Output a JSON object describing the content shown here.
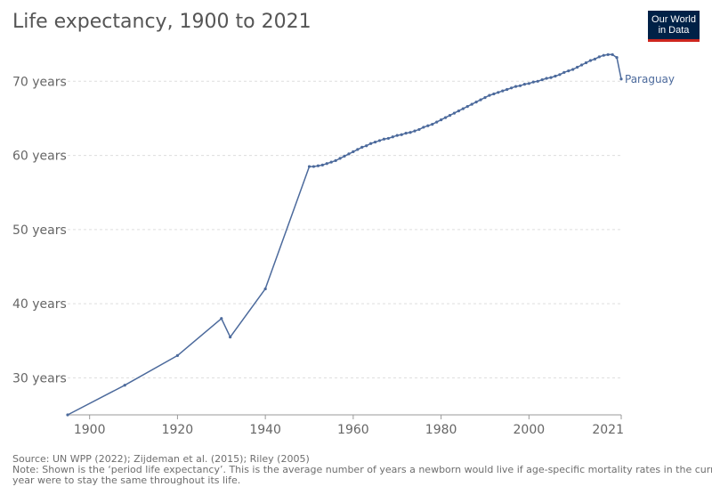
{
  "header": {
    "title": "Life expectancy, 1900 to 2021",
    "logo_line1": "Our World",
    "logo_line2": "in Data"
  },
  "footer": {
    "source": "Source: UN WPP (2022); Zijdeman et al. (2015); Riley (2005)",
    "note_line1": "Note: Shown is the ‘period life expectancy’. This is the average number of years a newborn would live if age-specific mortality rates in the current",
    "note_line2": "year were to stay the same throughout its life."
  },
  "colors": {
    "series": "#4c6a9c",
    "grid": "#dddddd",
    "axis_text": "#666666",
    "logo_bg": "#002147",
    "logo_accent": "#ce261e"
  },
  "chart_data": {
    "type": "line",
    "title": "Life expectancy, 1900 to 2021",
    "xlabel": "",
    "ylabel": "",
    "xlim": [
      1895,
      2021
    ],
    "ylim": [
      25,
      74
    ],
    "x_ticks": [
      1900,
      1920,
      1940,
      1960,
      1980,
      2000,
      2021
    ],
    "y_ticks": [
      30,
      40,
      50,
      60,
      70
    ],
    "y_tick_labels": [
      "30 years",
      "40 years",
      "50 years",
      "60 years",
      "70 years"
    ],
    "grid": true,
    "series": [
      {
        "name": "Paraguay",
        "color": "#4c6a9c",
        "points": [
          [
            1895,
            25.0
          ],
          [
            1908,
            29.0
          ],
          [
            1920,
            33.0
          ],
          [
            1930,
            38.0
          ],
          [
            1932,
            35.5
          ],
          [
            1940,
            42.0
          ],
          [
            1950,
            58.5
          ],
          [
            1951,
            58.5
          ],
          [
            1952,
            58.6
          ],
          [
            1953,
            58.7
          ],
          [
            1954,
            58.9
          ],
          [
            1955,
            59.1
          ],
          [
            1956,
            59.3
          ],
          [
            1957,
            59.6
          ],
          [
            1958,
            59.9
          ],
          [
            1959,
            60.2
          ],
          [
            1960,
            60.5
          ],
          [
            1961,
            60.8
          ],
          [
            1962,
            61.1
          ],
          [
            1963,
            61.3
          ],
          [
            1964,
            61.6
          ],
          [
            1965,
            61.8
          ],
          [
            1966,
            62.0
          ],
          [
            1967,
            62.2
          ],
          [
            1968,
            62.3
          ],
          [
            1969,
            62.5
          ],
          [
            1970,
            62.7
          ],
          [
            1971,
            62.8
          ],
          [
            1972,
            63.0
          ],
          [
            1973,
            63.1
          ],
          [
            1974,
            63.3
          ],
          [
            1975,
            63.5
          ],
          [
            1976,
            63.8
          ],
          [
            1977,
            64.0
          ],
          [
            1978,
            64.2
          ],
          [
            1979,
            64.5
          ],
          [
            1980,
            64.8
          ],
          [
            1981,
            65.1
          ],
          [
            1982,
            65.4
          ],
          [
            1983,
            65.7
          ],
          [
            1984,
            66.0
          ],
          [
            1985,
            66.3
          ],
          [
            1986,
            66.6
          ],
          [
            1987,
            66.9
          ],
          [
            1988,
            67.2
          ],
          [
            1989,
            67.5
          ],
          [
            1990,
            67.8
          ],
          [
            1991,
            68.1
          ],
          [
            1992,
            68.3
          ],
          [
            1993,
            68.5
          ],
          [
            1994,
            68.7
          ],
          [
            1995,
            68.9
          ],
          [
            1996,
            69.1
          ],
          [
            1997,
            69.3
          ],
          [
            1998,
            69.4
          ],
          [
            1999,
            69.6
          ],
          [
            2000,
            69.7
          ],
          [
            2001,
            69.9
          ],
          [
            2002,
            70.0
          ],
          [
            2003,
            70.2
          ],
          [
            2004,
            70.4
          ],
          [
            2005,
            70.5
          ],
          [
            2006,
            70.7
          ],
          [
            2007,
            70.9
          ],
          [
            2008,
            71.2
          ],
          [
            2009,
            71.4
          ],
          [
            2010,
            71.6
          ],
          [
            2011,
            71.9
          ],
          [
            2012,
            72.2
          ],
          [
            2013,
            72.5
          ],
          [
            2014,
            72.8
          ],
          [
            2015,
            73.0
          ],
          [
            2016,
            73.3
          ],
          [
            2017,
            73.5
          ],
          [
            2018,
            73.6
          ],
          [
            2019,
            73.6
          ],
          [
            2020,
            73.2
          ],
          [
            2021,
            70.3
          ]
        ]
      }
    ]
  }
}
